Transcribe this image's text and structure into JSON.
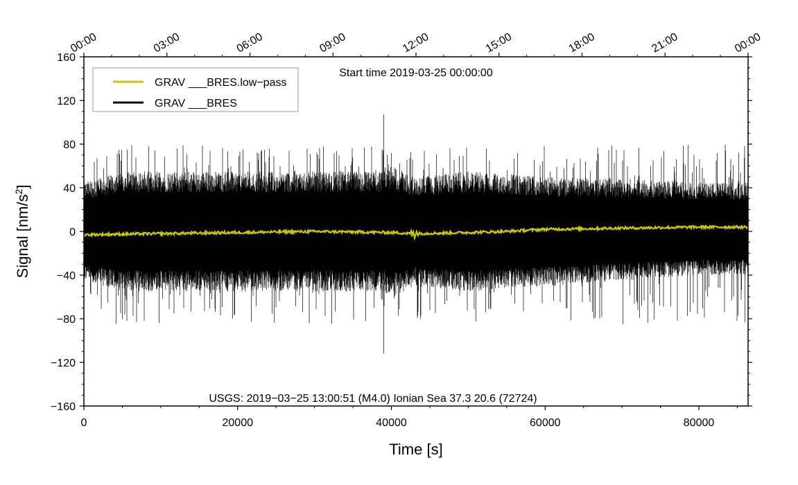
{
  "chart_data": {
    "type": "line",
    "title": "",
    "subtitle": "Start time 2019-03-25 00:00:00",
    "xlabel": "Time [s]",
    "ylabel": "Signal [nm/s",
    "ylabel_sup": "2",
    "ylabel_end": "]",
    "xlim": [
      0,
      86400
    ],
    "ylim": [
      -160,
      160
    ],
    "x_ticks": [
      0,
      20000,
      40000,
      60000,
      80000
    ],
    "x_tick_labels": [
      "0",
      "20000",
      "40000",
      "60000",
      "80000"
    ],
    "y_ticks": [
      160,
      120,
      80,
      40,
      0,
      -40,
      -80,
      -120,
      -160
    ],
    "y_tick_labels": [
      "160",
      "120",
      "80",
      "40",
      "0",
      "−40",
      "−80",
      "−120",
      "−160"
    ],
    "top_axis_ticks": [
      0,
      10800,
      21600,
      32400,
      43200,
      54000,
      64800,
      75600,
      86400
    ],
    "top_axis_labels": [
      "00:00",
      "03:00",
      "06:00",
      "09:00",
      "12:00",
      "15:00",
      "18:00",
      "21:00",
      "00:00"
    ],
    "annotation": "USGS: 2019−03−25 13:00:51 (M4.0) Ionian Sea 37.3 20.6 (72724)",
    "legend_position": "top-left",
    "series": [
      {
        "name": "GRAV ___BRES.low−pass",
        "color": "#c8c800",
        "description_values": {
          "x": [
            0,
            10000,
            20000,
            30000,
            40000,
            43000,
            50000,
            55000,
            60000,
            70000,
            80000,
            86400
          ],
          "y": [
            -3,
            -2,
            -1,
            0,
            -1,
            -2,
            -1,
            0,
            2,
            3,
            4,
            4
          ]
        }
      },
      {
        "name": "GRAV ___BRES",
        "color": "#000000",
        "envelope": {
          "x": [
            0,
            5000,
            10000,
            20000,
            30000,
            39000,
            40000,
            43000,
            50000,
            60000,
            70000,
            80000,
            86400
          ],
          "upper": [
            45,
            55,
            55,
            55,
            55,
            55,
            60,
            50,
            55,
            50,
            48,
            45,
            45
          ],
          "lower": [
            -45,
            -55,
            -55,
            -55,
            -55,
            -55,
            -60,
            -50,
            -55,
            -50,
            -45,
            -40,
            -40
          ],
          "spikes_up_max": 107,
          "spikes_down_min": -112
        }
      }
    ]
  }
}
